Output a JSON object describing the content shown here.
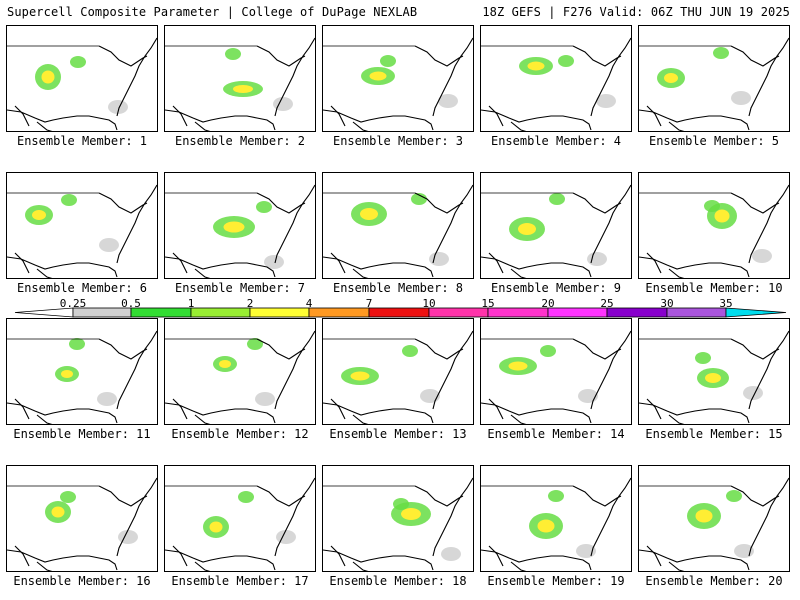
{
  "header": {
    "left": "Supercell Composite Parameter | College of DuPage NEXLAB",
    "right": "18Z GEFS | F276 Valid: 06Z THU JUN 19 2025"
  },
  "panel_label_prefix": "Ensemble Member: ",
  "members": [
    "1",
    "2",
    "3",
    "4",
    "5",
    "6",
    "7",
    "8",
    "9",
    "10",
    "11",
    "12",
    "13",
    "14",
    "15",
    "16",
    "17",
    "18",
    "19",
    "20"
  ],
  "colorbar": {
    "ticks": [
      "0.25",
      "0.5",
      "1",
      "2",
      "4",
      "7",
      "10",
      "15",
      "20",
      "25",
      "30",
      "35"
    ],
    "colors": [
      "#d0d0d0",
      "#33dd33",
      "#99ee33",
      "#ffff33",
      "#ff9922",
      "#ee1111",
      "#ff33aa",
      "#ff33cc",
      "#ff33ff",
      "#8800cc",
      "#aa55dd"
    ],
    "end_color": "#00ddee"
  }
}
